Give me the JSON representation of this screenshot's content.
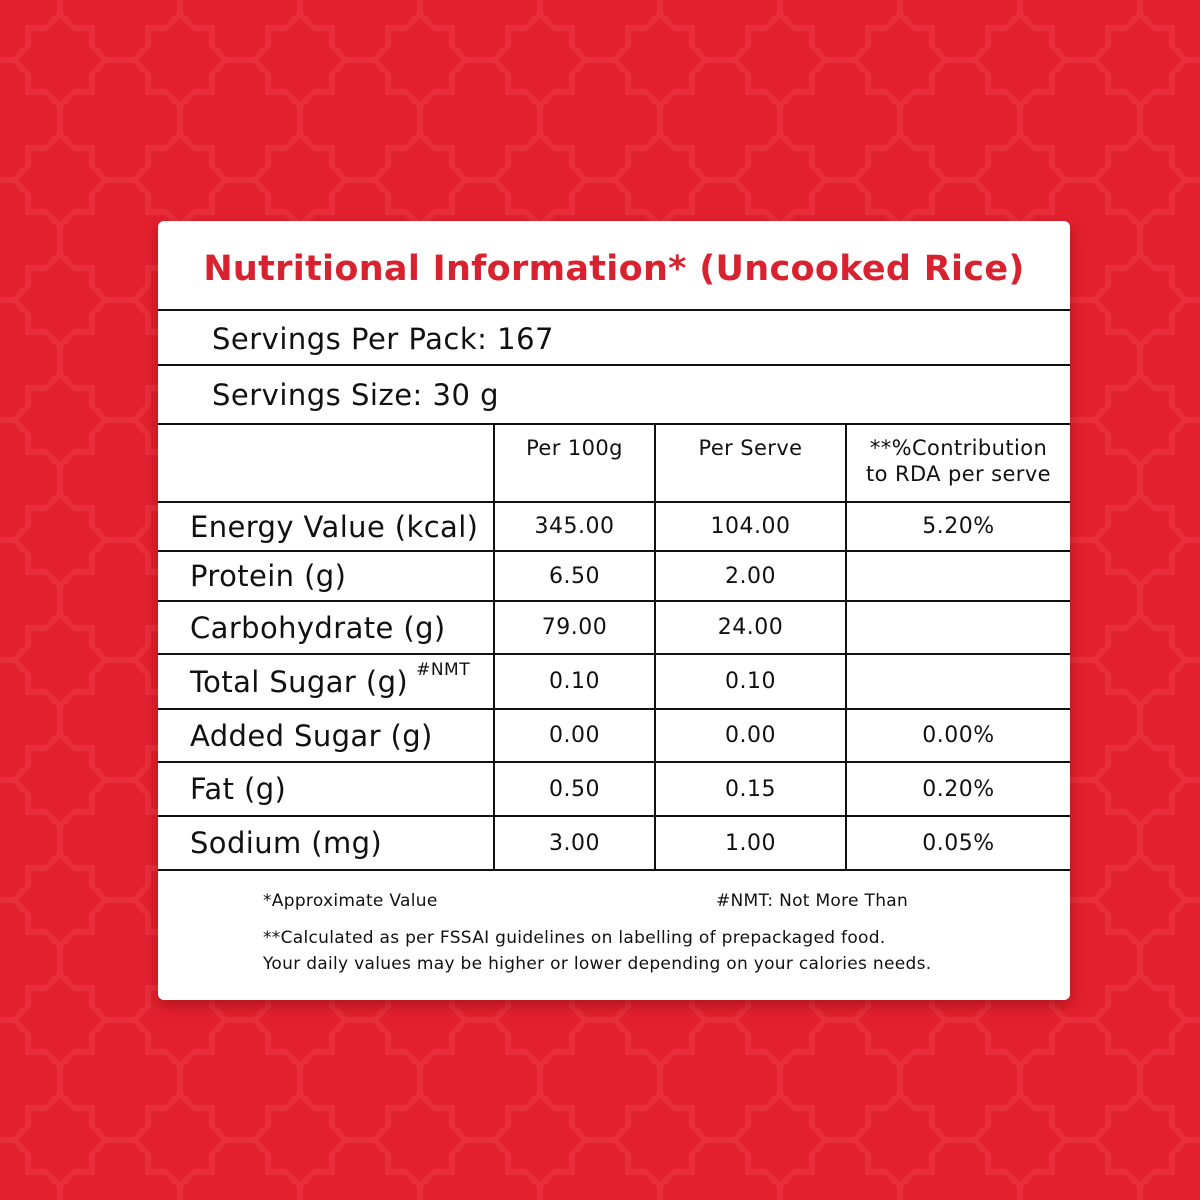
{
  "colors": {
    "background": "#e3202e",
    "title": "#d9222f",
    "card": "#ffffff"
  },
  "title": "Nutritional Information* (Uncooked Rice)",
  "servings_per_pack": "Servings Per Pack: 167",
  "serving_size": "Servings Size: 30 g",
  "headers": {
    "per100": "Per 100g",
    "perserve": "Per Serve",
    "rda_line1": "**%Contribution",
    "rda_line2": "to RDA per serve"
  },
  "rows": [
    {
      "label": "Energy Value (kcal)",
      "sup": "",
      "per100": "345.00",
      "perserve": "104.00",
      "rda": "5.20%"
    },
    {
      "label": "Protein (g)",
      "sup": "",
      "per100": "6.50",
      "perserve": "2.00",
      "rda": ""
    },
    {
      "label": "Carbohydrate (g)",
      "sup": "",
      "per100": "79.00",
      "perserve": "24.00",
      "rda": ""
    },
    {
      "label": "Total Sugar (g)",
      "sup": "#NMT",
      "per100": "0.10",
      "perserve": "0.10",
      "rda": ""
    },
    {
      "label": "Added Sugar (g)",
      "sup": "",
      "per100": "0.00",
      "perserve": "0.00",
      "rda": "0.00%"
    },
    {
      "label": "Fat (g)",
      "sup": "",
      "per100": "0.50",
      "perserve": "0.15",
      "rda": "0.20%"
    },
    {
      "label": "Sodium (mg)",
      "sup": "",
      "per100": "3.00",
      "perserve": "1.00",
      "rda": "0.05%"
    }
  ],
  "notes": {
    "approx": "*Approximate Value",
    "nmt": "#NMT: Not More Than",
    "calc_line1": "**Calculated as per FSSAI guidelines on labelling of prepackaged food.",
    "calc_line2": "Your daily values may be higher or lower depending on your calories needs."
  }
}
